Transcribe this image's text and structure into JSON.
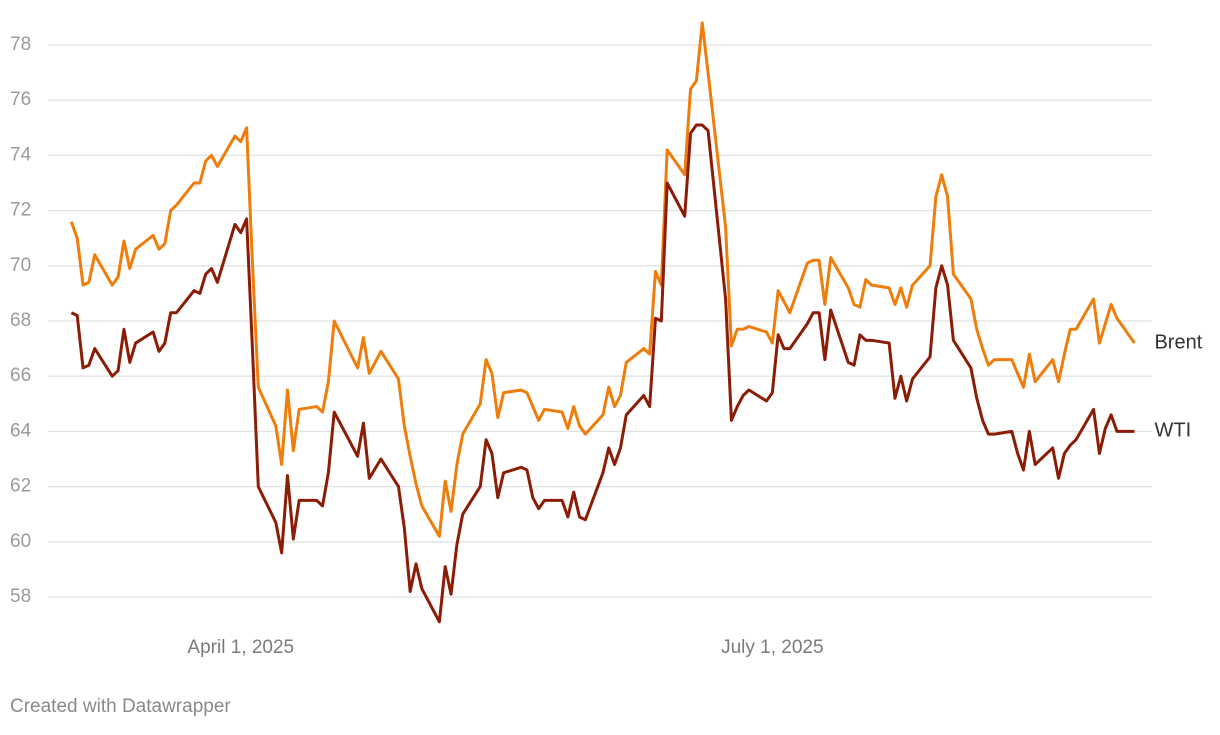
{
  "chart_data": {
    "type": "line",
    "credit": "Created with Datawrapper",
    "x": [
      "2025-03-03",
      "2025-03-04",
      "2025-03-05",
      "2025-03-06",
      "2025-03-07",
      "2025-03-10",
      "2025-03-11",
      "2025-03-12",
      "2025-03-13",
      "2025-03-14",
      "2025-03-17",
      "2025-03-18",
      "2025-03-19",
      "2025-03-20",
      "2025-03-21",
      "2025-03-24",
      "2025-03-25",
      "2025-03-26",
      "2025-03-27",
      "2025-03-28",
      "2025-03-31",
      "2025-04-01",
      "2025-04-02",
      "2025-04-03",
      "2025-04-04",
      "2025-04-07",
      "2025-04-08",
      "2025-04-09",
      "2025-04-10",
      "2025-04-11",
      "2025-04-14",
      "2025-04-15",
      "2025-04-16",
      "2025-04-17",
      "2025-04-21",
      "2025-04-22",
      "2025-04-23",
      "2025-04-25",
      "2025-04-28",
      "2025-04-29",
      "2025-04-30",
      "2025-05-01",
      "2025-05-02",
      "2025-05-05",
      "2025-05-06",
      "2025-05-07",
      "2025-05-08",
      "2025-05-09",
      "2025-05-12",
      "2025-05-13",
      "2025-05-14",
      "2025-05-15",
      "2025-05-16",
      "2025-05-19",
      "2025-05-20",
      "2025-05-21",
      "2025-05-22",
      "2025-05-23",
      "2025-05-26",
      "2025-05-27",
      "2025-05-28",
      "2025-05-29",
      "2025-05-30",
      "2025-06-02",
      "2025-06-03",
      "2025-06-04",
      "2025-06-05",
      "2025-06-06",
      "2025-06-09",
      "2025-06-10",
      "2025-06-11",
      "2025-06-12",
      "2025-06-13",
      "2025-06-16",
      "2025-06-17",
      "2025-06-18",
      "2025-06-19",
      "2025-06-20",
      "2025-06-23",
      "2025-06-24",
      "2025-06-25",
      "2025-06-26",
      "2025-06-27",
      "2025-06-30",
      "2025-07-01",
      "2025-07-02",
      "2025-07-03",
      "2025-07-04",
      "2025-07-07",
      "2025-07-08",
      "2025-07-09",
      "2025-07-10",
      "2025-07-11",
      "2025-07-14",
      "2025-07-15",
      "2025-07-16",
      "2025-07-17",
      "2025-07-18",
      "2025-07-21",
      "2025-07-22",
      "2025-07-23",
      "2025-07-24",
      "2025-07-25",
      "2025-07-28",
      "2025-07-29",
      "2025-07-30",
      "2025-07-31",
      "2025-08-01",
      "2025-08-04",
      "2025-08-05",
      "2025-08-06",
      "2025-08-07",
      "2025-08-08",
      "2025-08-11",
      "2025-08-12",
      "2025-08-13",
      "2025-08-14",
      "2025-08-15",
      "2025-08-18",
      "2025-08-19",
      "2025-08-20",
      "2025-08-21",
      "2025-08-22",
      "2025-08-25",
      "2025-08-26",
      "2025-08-27",
      "2025-08-28",
      "2025-08-29",
      "2025-09-01"
    ],
    "series": [
      {
        "name": "Brent",
        "color": "#ee7d0c",
        "values": [
          71.6,
          71.0,
          69.3,
          69.4,
          70.4,
          69.3,
          69.6,
          70.9,
          69.9,
          70.6,
          71.1,
          70.6,
          70.8,
          72.0,
          72.2,
          73.0,
          73.0,
          73.8,
          74.0,
          73.6,
          74.7,
          74.5,
          75.0,
          70.1,
          65.6,
          64.2,
          62.8,
          65.5,
          63.3,
          64.8,
          64.9,
          64.7,
          65.8,
          68.0,
          66.3,
          67.4,
          66.1,
          66.9,
          65.9,
          64.2,
          63.1,
          62.1,
          61.3,
          60.2,
          62.2,
          61.1,
          62.8,
          63.9,
          65.0,
          66.6,
          66.1,
          64.5,
          65.4,
          65.5,
          65.4,
          64.9,
          64.4,
          64.8,
          64.7,
          64.1,
          64.9,
          64.2,
          63.9,
          64.6,
          65.6,
          64.9,
          65.3,
          66.5,
          67.0,
          66.8,
          69.8,
          69.3,
          74.2,
          73.3,
          76.4,
          76.7,
          78.8,
          77.0,
          71.4,
          67.1,
          67.7,
          67.7,
          67.8,
          67.6,
          67.2,
          69.1,
          68.7,
          68.3,
          70.1,
          70.2,
          70.2,
          68.6,
          70.3,
          69.2,
          68.6,
          68.5,
          69.5,
          69.3,
          69.2,
          68.6,
          69.2,
          68.5,
          69.3,
          70.0,
          72.5,
          73.3,
          72.5,
          69.7,
          68.8,
          67.7,
          67.0,
          66.4,
          66.6,
          66.6,
          66.1,
          65.6,
          66.8,
          65.8,
          66.6,
          65.8,
          66.8,
          67.7,
          67.7,
          68.8,
          67.2,
          67.9,
          68.6,
          68.1,
          67.2
        ]
      },
      {
        "name": "WTI",
        "color": "#8b1c06",
        "values": [
          68.3,
          68.2,
          66.3,
          66.4,
          67.0,
          66.0,
          66.2,
          67.7,
          66.5,
          67.2,
          67.6,
          66.9,
          67.2,
          68.3,
          68.3,
          69.1,
          69.0,
          69.7,
          69.9,
          69.4,
          71.5,
          71.2,
          71.7,
          67.0,
          62.0,
          60.7,
          59.6,
          62.4,
          60.1,
          61.5,
          61.5,
          61.3,
          62.5,
          64.7,
          63.1,
          64.3,
          62.3,
          63.0,
          62.0,
          60.5,
          58.2,
          59.2,
          58.3,
          57.1,
          59.1,
          58.1,
          59.9,
          61.0,
          62.0,
          63.7,
          63.2,
          61.6,
          62.5,
          62.7,
          62.6,
          61.6,
          61.2,
          61.5,
          61.5,
          60.9,
          61.8,
          60.9,
          60.8,
          62.5,
          63.4,
          62.8,
          63.4,
          64.6,
          65.3,
          64.9,
          68.1,
          68.0,
          73.0,
          71.8,
          74.8,
          75.1,
          75.1,
          74.9,
          68.8,
          64.4,
          64.9,
          65.3,
          65.5,
          65.1,
          65.4,
          67.5,
          67.0,
          67.0,
          67.9,
          68.3,
          68.3,
          66.6,
          68.4,
          66.5,
          66.4,
          67.5,
          67.3,
          67.3,
          67.2,
          65.2,
          66.0,
          65.1,
          65.9,
          66.7,
          69.2,
          70.0,
          69.3,
          67.3,
          66.3,
          65.2,
          64.4,
          63.9,
          63.9,
          64.0,
          63.2,
          62.6,
          64.0,
          62.8,
          63.4,
          62.3,
          63.2,
          63.5,
          63.7,
          64.8,
          63.2,
          64.1,
          64.6,
          64.0,
          64.0
        ]
      }
    ],
    "xlim": [
      "2025-02-27",
      "2025-09-04"
    ],
    "xticks": [
      {
        "value": "2025-04-01",
        "label": "April 1, 2025"
      },
      {
        "value": "2025-07-01",
        "label": "July 1, 2025"
      }
    ],
    "ylim": [
      57,
      79
    ],
    "yticks": [
      58,
      60,
      62,
      64,
      66,
      68,
      70,
      72,
      74,
      76,
      78
    ],
    "grid": true
  }
}
